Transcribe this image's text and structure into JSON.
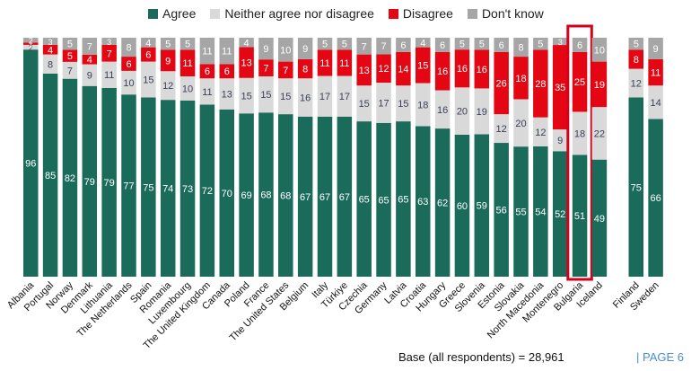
{
  "legend": {
    "agree": "Agree",
    "neither": "Neither agree nor disagree",
    "disagree": "Disagree",
    "dontknow": "Don't know"
  },
  "colors": {
    "agree": "#1a6b5a",
    "neither": "#d9d9d9",
    "disagree": "#e40613",
    "dontknow": "#a6a6a6",
    "highlight": "#d6001c"
  },
  "footer": {
    "base": "Base (all respondents) = 28,961",
    "page": "|  PAGE 6"
  },
  "chart_data": {
    "type": "bar",
    "stacked": true,
    "orientation": "vertical",
    "units": "percent",
    "categories": [
      "Albania",
      "Portugal",
      "Norway",
      "Denmark",
      "Lithuania",
      "The Netherlands",
      "Spain",
      "Romania",
      "Luxembourg",
      "The United Kingdom",
      "Canada",
      "Poland",
      "France",
      "The United States",
      "Belgium",
      "Italy",
      "Türkiye",
      "Czechia",
      "Germany",
      "Latvia",
      "Croatia",
      "Hungary",
      "Greece",
      "Slovenia",
      "Estonia",
      "Slovakia",
      "North Macedonia",
      "Montenegro",
      "Bulgaria",
      "Iceland",
      "Finland",
      "Sweden"
    ],
    "series": [
      {
        "name": "Agree",
        "values": [
          96,
          85,
          82,
          79,
          79,
          77,
          75,
          74,
          73,
          72,
          70,
          69,
          68,
          68,
          67,
          67,
          67,
          65,
          65,
          65,
          63,
          62,
          60,
          59,
          56,
          55,
          54,
          52,
          51,
          49,
          75,
          66
        ]
      },
      {
        "name": "Neither agree nor disagree",
        "values": [
          2,
          8,
          7,
          9,
          11,
          10,
          15,
          12,
          10,
          11,
          13,
          15,
          15,
          15,
          16,
          17,
          17,
          15,
          17,
          15,
          18,
          16,
          20,
          19,
          12,
          20,
          12,
          9,
          18,
          22,
          12,
          14
        ]
      },
      {
        "name": "Disagree",
        "values": [
          1,
          4,
          5,
          4,
          7,
          6,
          6,
          9,
          11,
          6,
          6,
          13,
          7,
          7,
          8,
          11,
          11,
          13,
          12,
          14,
          15,
          16,
          16,
          16,
          26,
          18,
          28,
          35,
          25,
          19,
          8,
          11
        ]
      },
      {
        "name": "Don't know",
        "values": [
          2,
          3,
          5,
          7,
          3,
          8,
          4,
          5,
          5,
          11,
          11,
          4,
          9,
          10,
          9,
          5,
          5,
          7,
          7,
          6,
          4,
          6,
          5,
          5,
          6,
          8,
          5,
          3,
          6,
          10,
          5,
          9
        ]
      }
    ],
    "highlighted_category": "Bulgaria",
    "ylim": [
      0,
      100
    ],
    "legend_position": "top"
  }
}
